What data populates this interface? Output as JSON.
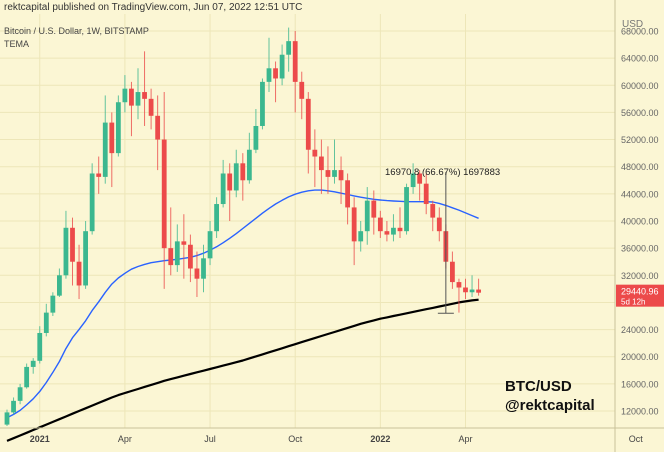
{
  "header": {
    "published": "rektcapital published on TradingView.com, Jun 07, 2022 12:51 UTC",
    "symbol": "Bitcoin / U.S. Dollar, 1W, BITSTAMP",
    "indicator": "TEMA"
  },
  "watermark": {
    "line1": "BTC/USD",
    "line2": "@rektcapital"
  },
  "colors": {
    "up": "#3bb78f",
    "down": "#ec4a4a",
    "tema": "#2962ff",
    "ma": "#000000",
    "price_tag": "#ec4a4a",
    "grid": "#ede6b8"
  },
  "chart_data": {
    "type": "candlestick",
    "currency": "USD",
    "yticks": [
      12000,
      16000,
      20000,
      24000,
      28000,
      32000,
      36000,
      40000,
      44000,
      48000,
      52000,
      56000,
      60000,
      64000,
      68000
    ],
    "ylim": [
      9500,
      70500
    ],
    "xticks": [
      "2021",
      "Apr",
      "Jul",
      "Oct",
      "2022",
      "Apr",
      "Oct"
    ],
    "last_price": "29440.96",
    "last_countdown": "5d 12h",
    "annotation": "16970.8 (66.67%) 1697883",
    "candles": [
      [
        10000,
        11800,
        9800,
        12200
      ],
      [
        11800,
        13500,
        11500,
        14000
      ],
      [
        13500,
        15500,
        13000,
        16000
      ],
      [
        15500,
        18500,
        15300,
        19000
      ],
      [
        18500,
        19400,
        17500,
        19800
      ],
      [
        19400,
        23500,
        19000,
        24500
      ],
      [
        23500,
        26500,
        23000,
        27800
      ],
      [
        26500,
        29000,
        26000,
        29500
      ],
      [
        29000,
        32000,
        28800,
        33000
      ],
      [
        32000,
        39000,
        31500,
        41500
      ],
      [
        39000,
        34000,
        30500,
        40500
      ],
      [
        34000,
        30500,
        28500,
        36500
      ],
      [
        30500,
        38500,
        30000,
        40000
      ],
      [
        38500,
        47000,
        38000,
        48500
      ],
      [
        47000,
        46500,
        44000,
        49500
      ],
      [
        46500,
        54500,
        45500,
        58500
      ],
      [
        54500,
        50000,
        45000,
        56000
      ],
      [
        50000,
        57500,
        49500,
        58500
      ],
      [
        57500,
        59500,
        56000,
        61500
      ],
      [
        59500,
        57000,
        52500,
        60500
      ],
      [
        57000,
        59000,
        55000,
        62500
      ],
      [
        59000,
        58000,
        54000,
        65000
      ],
      [
        58000,
        55500,
        53500,
        59500
      ],
      [
        55500,
        52000,
        47500,
        58500
      ],
      [
        52000,
        36000,
        30000,
        59000
      ],
      [
        36000,
        33500,
        32000,
        42000
      ],
      [
        33500,
        37000,
        32500,
        39500
      ],
      [
        37000,
        36500,
        31500,
        41000
      ],
      [
        36500,
        33000,
        31000,
        38000
      ],
      [
        33000,
        31500,
        28800,
        35500
      ],
      [
        31500,
        34500,
        29500,
        36500
      ],
      [
        34500,
        38500,
        33500,
        40000
      ],
      [
        38500,
        42500,
        37500,
        43500
      ],
      [
        42500,
        47000,
        42000,
        49000
      ],
      [
        47000,
        44500,
        40000,
        48500
      ],
      [
        44500,
        48500,
        43500,
        50500
      ],
      [
        48500,
        46000,
        43000,
        50000
      ],
      [
        46000,
        50500,
        45500,
        53000
      ],
      [
        50500,
        54000,
        50000,
        56500
      ],
      [
        54000,
        60500,
        53500,
        61000
      ],
      [
        60500,
        62500,
        59000,
        67000
      ],
      [
        62500,
        61000,
        57500,
        63500
      ],
      [
        61000,
        64500,
        60000,
        66000
      ],
      [
        64500,
        66500,
        62000,
        68500
      ],
      [
        66500,
        60500,
        56000,
        68000
      ],
      [
        60500,
        58000,
        55000,
        62000
      ],
      [
        58000,
        50500,
        47000,
        59000
      ],
      [
        50500,
        49500,
        45000,
        53500
      ],
      [
        49500,
        47500,
        44000,
        52000
      ],
      [
        47500,
        46500,
        44000,
        51000
      ],
      [
        46500,
        47500,
        45500,
        52000
      ],
      [
        47500,
        46000,
        42500,
        49500
      ],
      [
        46000,
        42000,
        39500,
        47000
      ],
      [
        42000,
        37000,
        33500,
        43500
      ],
      [
        37000,
        38500,
        35500,
        40000
      ],
      [
        38500,
        43000,
        36500,
        45000
      ],
      [
        43000,
        40500,
        38000,
        44500
      ],
      [
        40500,
        38500,
        37500,
        41500
      ],
      [
        38500,
        38000,
        37000,
        40000
      ],
      [
        38000,
        39000,
        37000,
        41000
      ],
      [
        39000,
        38500,
        37500,
        42000
      ],
      [
        38500,
        45000,
        38000,
        45500
      ],
      [
        45000,
        47000,
        44000,
        48500
      ],
      [
        47000,
        45500,
        43000,
        47500
      ],
      [
        45500,
        42500,
        41000,
        47000
      ],
      [
        42500,
        40500,
        38500,
        43000
      ],
      [
        40500,
        38500,
        37000,
        42000
      ],
      [
        38500,
        34000,
        33000,
        39500
      ],
      [
        34000,
        31000,
        30000,
        35500
      ],
      [
        31000,
        30200,
        26500,
        31500
      ],
      [
        30200,
        29500,
        28500,
        31500
      ],
      [
        29500,
        29900,
        28800,
        32000
      ],
      [
        29900,
        29440,
        29000,
        31500
      ]
    ],
    "tema": [
      11000,
      11500,
      12100,
      12900,
      13800,
      14900,
      16200,
      17700,
      19300,
      21200,
      22800,
      24000,
      25300,
      26800,
      28100,
      29500,
      30700,
      31600,
      32300,
      32900,
      33300,
      33600,
      33850,
      34000,
      34150,
      34250,
      34350,
      34500,
      34650,
      34900,
      35250,
      35700,
      36200,
      36800,
      37450,
      38150,
      38900,
      39650,
      40400,
      41150,
      41850,
      42500,
      43050,
      43550,
      43950,
      44250,
      44450,
      44550,
      44550,
      44450,
      44300,
      44100,
      43900,
      43700,
      43500,
      43350,
      43200,
      43100,
      43000,
      42950,
      42900,
      42850,
      42850,
      42850,
      42850,
      42800,
      42600,
      42300,
      41950,
      41600,
      41200,
      40800,
      40400
    ],
    "ma": [
      7600,
      8000,
      8400,
      8800,
      9200,
      9600,
      10000,
      10400,
      10800,
      11200,
      11600,
      12000,
      12400,
      12800,
      13200,
      13600,
      14000,
      14350,
      14650,
      14950,
      15250,
      15550,
      15850,
      16150,
      16450,
      16700,
      16950,
      17200,
      17450,
      17700,
      17950,
      18200,
      18450,
      18700,
      18950,
      19200,
      19450,
      19750,
      20050,
      20350,
      20650,
      20950,
      21250,
      21550,
      21850,
      22150,
      22450,
      22750,
      23050,
      23350,
      23650,
      23950,
      24250,
      24550,
      24850,
      25100,
      25350,
      25600,
      25800,
      26000,
      26200,
      26400,
      26600,
      26800,
      27000,
      27200,
      27400,
      27600,
      27800,
      28000,
      28150,
      28300,
      28400
    ]
  }
}
